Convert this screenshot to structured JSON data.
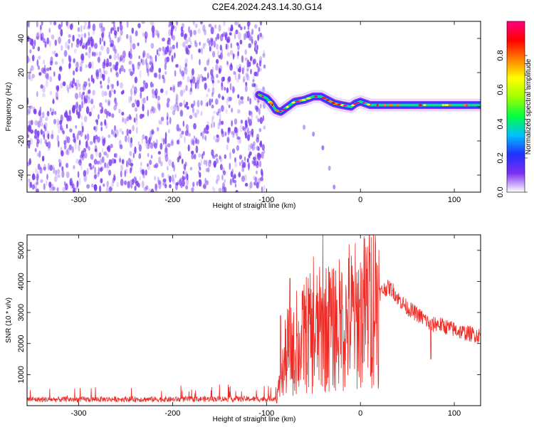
{
  "title": "C2E4.2024.243.14.30.G14",
  "colors": {
    "snr_line": "#ee2a24",
    "spectrogram_noise": "#7a3cf0",
    "colormap": [
      "#ffffff",
      "#7b2ff0",
      "#2030ff",
      "#00c0ff",
      "#00ff40",
      "#a0ff00",
      "#ffff00",
      "#ff8000",
      "#ff0000",
      "#ff0080"
    ]
  },
  "chart_data": [
    {
      "type": "heatmap",
      "name": "spectrogram",
      "xlabel": "Height of straight line (km)",
      "ylabel": "Frequency (Hz)",
      "xlim": [
        -355,
        128
      ],
      "ylim": [
        -50,
        50
      ],
      "xticks": [
        -300,
        -200,
        -100,
        0,
        100
      ],
      "yticks": [
        -40,
        -20,
        0,
        20,
        40
      ],
      "noise_region_end_x": -102,
      "signal_track": [
        {
          "x": -108,
          "y": 7
        },
        {
          "x": -100,
          "y": 5
        },
        {
          "x": -95,
          "y": 2
        },
        {
          "x": -90,
          "y": -2
        },
        {
          "x": -85,
          "y": -3
        },
        {
          "x": -80,
          "y": -1
        },
        {
          "x": -75,
          "y": 1
        },
        {
          "x": -70,
          "y": 3
        },
        {
          "x": -60,
          "y": 4
        },
        {
          "x": -50,
          "y": 6
        },
        {
          "x": -42,
          "y": 6
        },
        {
          "x": -35,
          "y": 4
        },
        {
          "x": -28,
          "y": 2
        },
        {
          "x": -20,
          "y": 1
        },
        {
          "x": -10,
          "y": 0
        },
        {
          "x": -5,
          "y": 2
        },
        {
          "x": 0,
          "y": 3
        },
        {
          "x": 10,
          "y": 1
        },
        {
          "x": 20,
          "y": 1
        },
        {
          "x": 40,
          "y": 1
        },
        {
          "x": 60,
          "y": 1
        },
        {
          "x": 80,
          "y": 1
        },
        {
          "x": 100,
          "y": 1
        },
        {
          "x": 128,
          "y": 1
        }
      ],
      "secondary_branch": [
        {
          "x": -60,
          "y": -12
        },
        {
          "x": -50,
          "y": -16
        },
        {
          "x": -40,
          "y": -24
        },
        {
          "x": -33,
          "y": -36
        },
        {
          "x": -28,
          "y": -47
        }
      ],
      "colorbar": {
        "label": "Normalized spectral amplitude",
        "range": [
          0.0,
          1.0
        ],
        "ticks": [
          "0.0",
          "0.2",
          "0.4",
          "0.6",
          "0.8"
        ]
      }
    },
    {
      "type": "line",
      "name": "snr",
      "xlabel": "Height of straight line (km)",
      "ylabel": "SNR (10 * v/v)",
      "xlim": [
        -355,
        128
      ],
      "ylim": [
        0,
        5500
      ],
      "xticks": [
        -300,
        -200,
        -100,
        0,
        100
      ],
      "yticks": [
        1000,
        2000,
        3000,
        4000,
        5000
      ],
      "series": [
        {
          "color": "#ee2a24",
          "x": [
            -355,
            -300,
            -250,
            -200,
            -150,
            -100,
            -90,
            -85,
            -80,
            -75,
            -70,
            -65,
            -60,
            -55,
            -50,
            -45,
            -40,
            -35,
            -30,
            -25,
            -20,
            -15,
            -10,
            -5,
            0,
            5,
            10,
            15,
            20,
            25,
            30,
            35,
            40,
            50,
            60,
            70,
            75,
            80,
            90,
            100,
            110,
            120,
            128
          ],
          "y": [
            200,
            200,
            210,
            200,
            220,
            210,
            250,
            700,
            1500,
            2000,
            1600,
            1800,
            2200,
            2400,
            2100,
            2500,
            2300,
            2600,
            2400,
            2700,
            2500,
            2600,
            2800,
            2900,
            2850,
            3100,
            3300,
            3450,
            3600,
            3750,
            3800,
            3700,
            3450,
            3150,
            2950,
            2750,
            2550,
            2650,
            2550,
            2450,
            2350,
            2300,
            2250
          ]
        }
      ],
      "spikes": [
        {
          "x": -85,
          "y": 2900
        },
        {
          "x": -75,
          "y": 4100
        },
        {
          "x": -68,
          "y": 3700
        },
        {
          "x": -60,
          "y": 3900
        },
        {
          "x": -50,
          "y": 4800
        },
        {
          "x": -40,
          "y": 5500
        },
        {
          "x": -33,
          "y": 4300
        },
        {
          "x": -25,
          "y": 3400
        },
        {
          "x": -20,
          "y": 4300
        },
        {
          "x": -12,
          "y": 5200
        },
        {
          "x": -5,
          "y": 3300
        },
        {
          "x": 10,
          "y": 4000
        },
        {
          "x": 75,
          "y": 1500
        }
      ]
    }
  ]
}
